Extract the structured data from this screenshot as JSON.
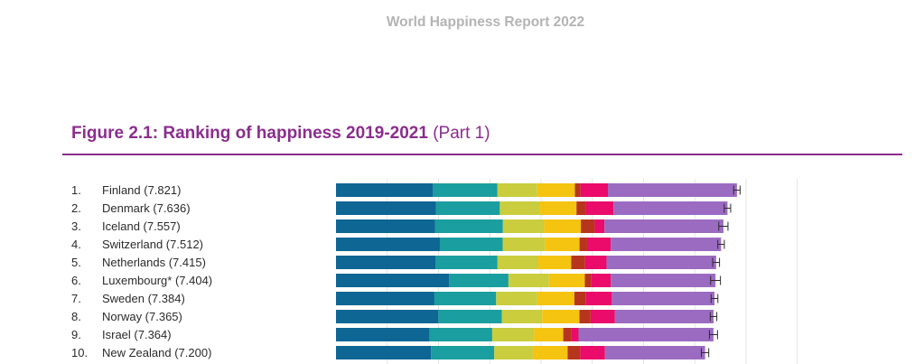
{
  "header": {
    "report_title": "World Happiness Report 2022"
  },
  "figure": {
    "title_main": "Figure 2.1: Ranking of happiness 2019-2021",
    "title_part": "(Part 1)"
  },
  "colors": {
    "title_purple": "#8b2d8e",
    "gdp": "#0d6694",
    "social_support": "#1a9e9f",
    "life_expectancy": "#c9cd3e",
    "freedom": "#f4c411",
    "generosity": "#b8351d",
    "corruption": "#ea0b6a",
    "dystopia_residual": "#9b6bc1",
    "whisker": "#2b2b2b",
    "gridline": "#e3e3e3"
  },
  "chart_data": {
    "type": "bar",
    "orientation": "horizontal",
    "stacked": true,
    "grid": true,
    "x_range": [
      0,
      9
    ],
    "component_order": [
      "gdp",
      "social_support",
      "life_expectancy",
      "freedom",
      "generosity",
      "corruption",
      "dystopia_residual"
    ],
    "rows": [
      {
        "rank": "1.",
        "country": "Finland (7.821)",
        "score": 7.821,
        "components": [
          1.892,
          1.258,
          0.775,
          0.736,
          0.109,
          0.534,
          2.518
        ],
        "ci": [
          7.758,
          7.883
        ]
      },
      {
        "rank": "2.",
        "country": "Denmark (7.636)",
        "score": 7.636,
        "components": [
          1.953,
          1.243,
          0.777,
          0.719,
          0.188,
          0.532,
          2.226
        ],
        "ci": [
          7.573,
          7.699
        ]
      },
      {
        "rank": "3.",
        "country": "Iceland (7.557)",
        "score": 7.557,
        "components": [
          1.936,
          1.32,
          0.803,
          0.718,
          0.27,
          0.191,
          2.32
        ],
        "ci": [
          7.467,
          7.647
        ]
      },
      {
        "rank": "4.",
        "country": "Switzerland (7.512)",
        "score": 7.512,
        "components": [
          2.026,
          1.226,
          0.822,
          0.677,
          0.147,
          0.461,
          2.153
        ],
        "ci": [
          7.448,
          7.576
        ]
      },
      {
        "rank": "5.",
        "country": "Netherlands (7.415)",
        "score": 7.415,
        "components": [
          1.945,
          1.206,
          0.787,
          0.651,
          0.271,
          0.419,
          2.137
        ],
        "ci": [
          7.348,
          7.482
        ]
      },
      {
        "rank": "6.",
        "country": "Luxembourg* (7.404)",
        "score": 7.404,
        "components": [
          2.209,
          1.155,
          0.79,
          0.7,
          0.12,
          0.388,
          2.042
        ],
        "ci": [
          7.308,
          7.5
        ]
      },
      {
        "rank": "7.",
        "country": "Sweden (7.384)",
        "score": 7.384,
        "components": [
          1.92,
          1.204,
          0.803,
          0.724,
          0.218,
          0.512,
          2.003
        ],
        "ci": [
          7.318,
          7.45
        ]
      },
      {
        "rank": "8.",
        "country": "Norway (7.365)",
        "score": 7.365,
        "components": [
          1.997,
          1.239,
          0.786,
          0.728,
          0.217,
          0.474,
          1.924
        ],
        "ci": [
          7.301,
          7.429
        ]
      },
      {
        "rank": "9.",
        "country": "Israel (7.364)",
        "score": 7.364,
        "components": [
          1.826,
          1.221,
          0.818,
          0.568,
          0.155,
          0.143,
          2.633
        ],
        "ci": [
          7.285,
          7.443
        ]
      },
      {
        "rank": "10.",
        "country": "New Zealand (7.200)",
        "score": 7.2,
        "components": [
          1.852,
          1.235,
          0.752,
          0.68,
          0.245,
          0.483,
          1.953
        ],
        "ci": [
          7.128,
          7.272
        ]
      }
    ]
  }
}
